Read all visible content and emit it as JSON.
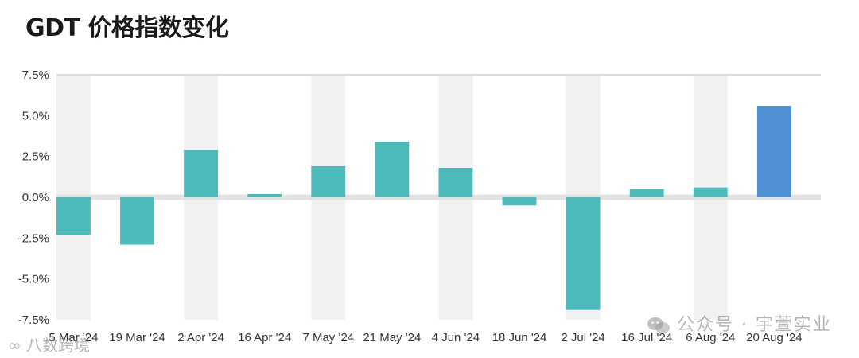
{
  "title": "GDT 价格指数变化",
  "chart_data": {
    "type": "bar",
    "title": "GDT 价格指数变化",
    "xlabel": "",
    "ylabel": "",
    "ylim": [
      -7.5,
      7.5
    ],
    "yticks": [
      "7.5%",
      "5.0%",
      "2.5%",
      "0.0%",
      "-2.5%",
      "-5.0%",
      "-7.5%"
    ],
    "ytick_values": [
      7.5,
      5.0,
      2.5,
      0.0,
      -2.5,
      -5.0,
      -7.5
    ],
    "categories": [
      "5 Mar '24",
      "19 Mar '24",
      "2 Apr '24",
      "16 Apr '24",
      "7 May '24",
      "21 May '24",
      "4 Jun '24",
      "18 Jun '24",
      "2 Jul '24",
      "16 Jul '24",
      "6 Aug '24",
      "20 Aug '24"
    ],
    "values": [
      -2.3,
      -2.9,
      2.9,
      0.2,
      1.9,
      3.4,
      1.8,
      -0.5,
      -6.9,
      0.5,
      0.6,
      5.6
    ],
    "colors": {
      "default_bar": "#4cb9bb",
      "highlight_bar": "#4e8fd4",
      "column_band": "#f1f1f1",
      "zero_line": "#e3e3e3",
      "top_line": "#dddddd"
    },
    "highlight_index": 11,
    "grid": false
  },
  "watermarks": {
    "right": "公众号 · 宇萱实业",
    "left": "八数跨境",
    "right_icon": "wechat-icon",
    "left_icon": "weibo-icon"
  }
}
